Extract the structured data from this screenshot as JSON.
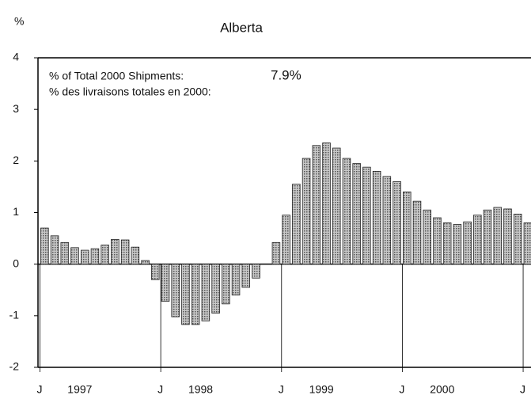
{
  "chart_data": {
    "type": "bar",
    "title": "Alberta",
    "y_axis_label": "%",
    "annotations": [
      "% of Total 2000 Shipments:",
      "% des livraisons totales en 2000:"
    ],
    "annotation_value": "7.9%",
    "categories": [
      "J",
      null,
      null,
      null,
      null,
      null,
      null,
      null,
      null,
      null,
      null,
      null,
      "J",
      null,
      null,
      null,
      null,
      null,
      null,
      null,
      null,
      null,
      null,
      null,
      "J",
      null,
      null,
      null,
      null,
      null,
      null,
      null,
      null,
      null,
      null,
      null,
      "J",
      null,
      null,
      null,
      null,
      null,
      null,
      null,
      null,
      null,
      null,
      null,
      "J"
    ],
    "year_labels": [
      "1997",
      "1998",
      "1999",
      "2000"
    ],
    "values": [
      0.7,
      0.55,
      0.42,
      0.32,
      0.27,
      0.3,
      0.37,
      0.48,
      0.47,
      0.33,
      0.07,
      -0.3,
      -0.72,
      -1.02,
      -1.17,
      -1.17,
      -1.1,
      -0.95,
      -0.77,
      -0.6,
      -0.45,
      -0.27,
      0,
      0.42,
      0.95,
      1.55,
      2.05,
      2.3,
      2.35,
      2.25,
      2.05,
      1.95,
      1.88,
      1.8,
      1.7,
      1.6,
      1.4,
      1.22,
      1.05,
      0.9,
      0.8,
      0.77,
      0.82,
      0.95,
      1.05,
      1.1,
      1.07,
      0.97,
      0.8
    ],
    "color": "#9a9a9a",
    "ylim": [
      -2,
      4
    ],
    "yticks": [
      -2,
      -1,
      0,
      1,
      2,
      3,
      4
    ]
  }
}
